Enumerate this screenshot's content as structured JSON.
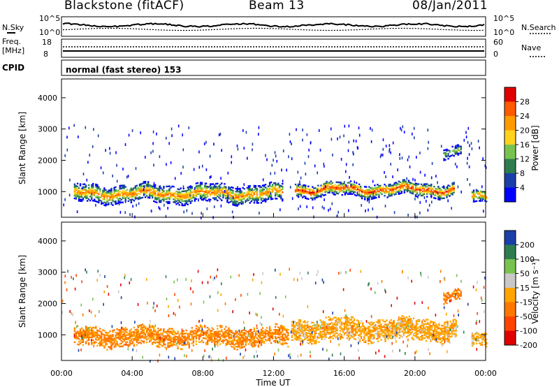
{
  "header": {
    "station": "Blackstone (fitACF)",
    "beam": "Beam 13",
    "date": "08/Jan/2011"
  },
  "summary": {
    "nsky_label": "N.Sky",
    "nsearch_label": "N.Search",
    "freq_label_1": "Freq.",
    "freq_label_2": "[MHz]",
    "nave_label": "Nave",
    "cpid_label": "CPID",
    "cpid_value": "normal (fast stereo) 153",
    "noise_left_ticks": [
      "10^5",
      "10^0"
    ],
    "noise_right_ticks": [
      "10^5",
      "10^0"
    ],
    "freq_ticks": [
      "18",
      "8"
    ],
    "nave_ticks": [
      "60",
      "0"
    ]
  },
  "chart_data": [
    {
      "type": "heatmap",
      "title": "",
      "xlabel": "Time UT",
      "ylabel": "Slant Range [km]",
      "xlim": [
        0,
        24
      ],
      "ylim": [
        180,
        4600
      ],
      "x_ticks": [
        "00:00",
        "04:00",
        "08:00",
        "12:00",
        "16:00",
        "20:00",
        "00:00"
      ],
      "y_ticks": [
        "1000",
        "2000",
        "3000",
        "4000"
      ],
      "colorbar": {
        "label": "Power [dB]",
        "ticks": [
          "4",
          "8",
          "12",
          "16",
          "20",
          "24",
          "28"
        ],
        "colors": [
          "#0000ff",
          "#1b3fa8",
          "#2e7d4f",
          "#78c350",
          "#ffd21e",
          "#ff9a00",
          "#ff5a00",
          "#e00000"
        ]
      },
      "bands": [
        {
          "start": 0.7,
          "end": 12.5,
          "center": 920,
          "width": 280,
          "peak_db": 24
        },
        {
          "start": 13.2,
          "end": 22.2,
          "center": 1050,
          "width": 220,
          "peak_db": 28
        },
        {
          "start": 21.6,
          "end": 22.6,
          "center": 2250,
          "width": 160,
          "peak_db": 16
        },
        {
          "start": 23.2,
          "end": 24,
          "center": 800,
          "width": 200,
          "peak_db": 24
        }
      ]
    },
    {
      "type": "heatmap",
      "title": "",
      "xlabel": "Time UT",
      "ylabel": "Slant Range [km]",
      "xlim": [
        0,
        24
      ],
      "ylim": [
        180,
        4600
      ],
      "x_ticks": [
        "00:00",
        "04:00",
        "08:00",
        "12:00",
        "16:00",
        "20:00",
        "00:00"
      ],
      "y_ticks": [
        "1000",
        "2000",
        "3000",
        "4000"
      ],
      "colorbar": {
        "label": "Velocity [m s⁻¹]",
        "ticks": [
          "200",
          "100",
          "50",
          "15",
          "-15",
          "-50",
          "-100",
          "-200"
        ],
        "colors": [
          "#1b3fa8",
          "#2e7d4f",
          "#78c350",
          "#c8c8c8",
          "#ffa500",
          "#ff7700",
          "#ff4400",
          "#e00000"
        ]
      },
      "bands": [
        {
          "start": 0.7,
          "end": 12.8,
          "center": 920,
          "width": 300,
          "velocity": -20
        },
        {
          "start": 13.0,
          "end": 22.3,
          "center": 1150,
          "width": 350,
          "velocity": 0
        },
        {
          "start": 21.6,
          "end": 22.6,
          "center": 2250,
          "width": 180,
          "velocity": -30
        },
        {
          "start": 23.2,
          "end": 24,
          "center": 800,
          "width": 220,
          "velocity": 0
        }
      ]
    }
  ]
}
